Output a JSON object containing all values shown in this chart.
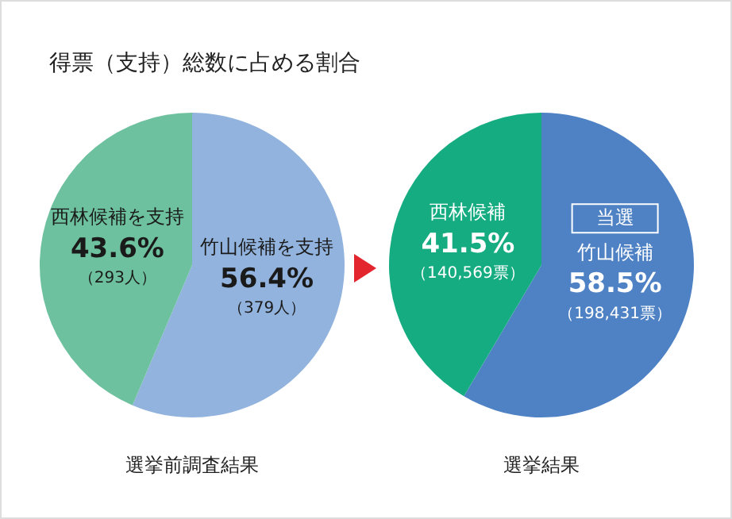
{
  "chart_data": [
    {
      "type": "pie",
      "title": "得票（支持）総数に占める割合",
      "xlabel": "選挙前調査結果",
      "categories": [
        "竹山候補を支持",
        "西林候補を支持"
      ],
      "values": [
        56.4,
        43.6
      ],
      "colors": [
        "#91b3dd",
        "#6dc19e"
      ],
      "value_labels": [
        "56.4%",
        "43.6%"
      ],
      "annotations": [
        {
          "text": "（379人）",
          "x": "竹山候補を支持"
        },
        {
          "text": "（293人）",
          "x": "西林候補を支持"
        }
      ],
      "legend": false
    },
    {
      "type": "pie",
      "xlabel": "選挙結果",
      "categories": [
        "竹山候補",
        "西林候補"
      ],
      "values": [
        58.5,
        41.5
      ],
      "colors": [
        "#4f82c4",
        "#14ac80"
      ],
      "value_labels": [
        "58.5%",
        "41.5%"
      ],
      "annotations": [
        "当選",
        {
          "text": "（198,431票）",
          "x": "竹山候補"
        },
        {
          "text": "（140,569票）",
          "x": "西林候補"
        }
      ],
      "legend": false
    }
  ]
}
